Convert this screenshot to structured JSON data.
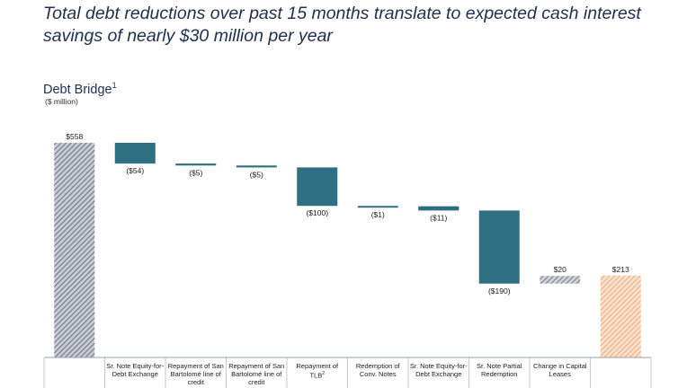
{
  "headline": {
    "line1": "Total debt reductions over past 15 months translate to expected cash interest",
    "line2": "savings of nearly $30 million per year"
  },
  "colors": {
    "decrease": "#2e6f82",
    "start_hatch": "#7b8391",
    "increase_hatch": "#8a8e98",
    "end_hatch": "#f2b98f"
  },
  "chart_data": {
    "type": "waterfall",
    "title": "Debt Bridge",
    "title_sup": "1",
    "subtitle": "($ million)",
    "ylim": [
      0,
      558
    ],
    "bars": [
      {
        "category": "",
        "value": 558,
        "label": "$558",
        "kind": "total"
      },
      {
        "category": "Sr. Note Equity-for-Debt Exchange",
        "value": -54,
        "label": "($54)",
        "kind": "decrease"
      },
      {
        "category": "Repayment of San Bartolomé line of credit",
        "value": -5,
        "label": "($5)",
        "kind": "decrease"
      },
      {
        "category": "Repayment of San Bartolomé line of credit",
        "value": -5,
        "label": "($5)",
        "kind": "decrease"
      },
      {
        "category": "Repayment of TLB",
        "category_sup": "2",
        "value": -100,
        "label": "($100)",
        "kind": "decrease"
      },
      {
        "category": "Redemption of Conv. Notes",
        "value": -1,
        "label": "($1)",
        "kind": "decrease"
      },
      {
        "category": "Sr. Note Equity-for-Debt Exchange",
        "value": -11,
        "label": "($11)",
        "kind": "decrease"
      },
      {
        "category": "Sr. Note Partial Redemption",
        "value": -190,
        "label": "($190)",
        "kind": "decrease"
      },
      {
        "category": "Change in Capital Leases",
        "value": 20,
        "label": "$20",
        "kind": "increase"
      },
      {
        "category": "",
        "value": 213,
        "label": "$213",
        "kind": "end"
      }
    ]
  }
}
